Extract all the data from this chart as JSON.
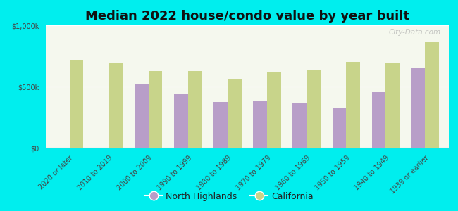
{
  "title": "Median 2022 house/condo value by year built",
  "categories": [
    "2020 or later",
    "2010 to 2019",
    "2000 to 2009",
    "1990 to 1999",
    "1980 to 1989",
    "1970 to 1979",
    "1960 to 1969",
    "1950 to 1959",
    "1940 to 1949",
    "1939 or earlier"
  ],
  "north_highlands": [
    0,
    0,
    520000,
    435000,
    375000,
    380000,
    370000,
    325000,
    455000,
    650000
  ],
  "california": [
    720000,
    690000,
    625000,
    625000,
    565000,
    620000,
    630000,
    700000,
    695000,
    860000
  ],
  "nh_color": "#b89ec8",
  "ca_color": "#c8d48a",
  "bg_color": "#00eeee",
  "plot_bg": "#f5f8ee",
  "ylabel_top": "$1,000k",
  "ylabel_mid": "$500k",
  "ylabel_bot": "$0",
  "ylim": [
    0,
    1000000
  ],
  "bar_width": 0.35,
  "title_fontsize": 13,
  "tick_fontsize": 7,
  "legend_fontsize": 9,
  "watermark": "City-Data.com"
}
